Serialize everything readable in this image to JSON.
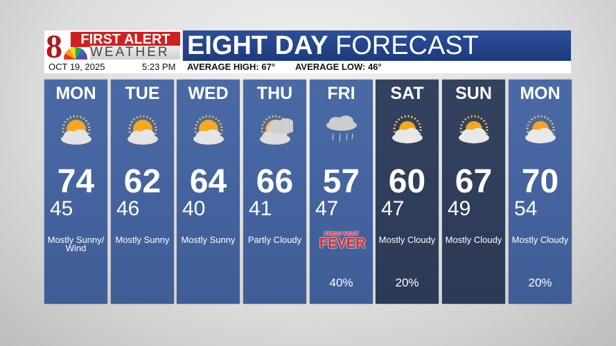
{
  "logo": {
    "number": "8",
    "line1": "FIRST ALERT",
    "line2": "WEATHER"
  },
  "header": {
    "title_bold": "EIGHT DAY",
    "title_light": "FORECAST",
    "date": "OCT 19, 2025",
    "time": "5:23 PM",
    "avg_high": "AVERAGE HIGH: 67°",
    "avg_low": "AVERAGE LOW: 46°"
  },
  "days": [
    {
      "day": "MON",
      "high": "74",
      "low": "45",
      "condition": "Mostly Sunny/ Wind",
      "precip": "",
      "icon": "mostly-sunny"
    },
    {
      "day": "TUE",
      "high": "62",
      "low": "46",
      "condition": "Mostly Sunny",
      "precip": "",
      "icon": "mostly-sunny"
    },
    {
      "day": "WED",
      "high": "64",
      "low": "40",
      "condition": "Mostly Sunny",
      "precip": "",
      "icon": "mostly-sunny"
    },
    {
      "day": "THU",
      "high": "66",
      "low": "41",
      "condition": "Partly Cloudy",
      "precip": "",
      "icon": "partly-cloudy"
    },
    {
      "day": "FRI",
      "high": "57",
      "low": "47",
      "condition": "",
      "precip": "40%",
      "icon": "showers",
      "badge_small": "FRIDAY NIGHT",
      "badge_big": "FEVER"
    },
    {
      "day": "SAT",
      "high": "60",
      "low": "47",
      "condition": "Mostly Cloudy",
      "precip": "20%",
      "icon": "mostly-cloudy"
    },
    {
      "day": "SUN",
      "high": "67",
      "low": "49",
      "condition": "Mostly Cloudy",
      "precip": "",
      "icon": "mostly-cloudy"
    },
    {
      "day": "MON",
      "high": "70",
      "low": "54",
      "condition": "Mostly Cloudy",
      "precip": "20%",
      "icon": "mostly-cloudy"
    }
  ]
}
